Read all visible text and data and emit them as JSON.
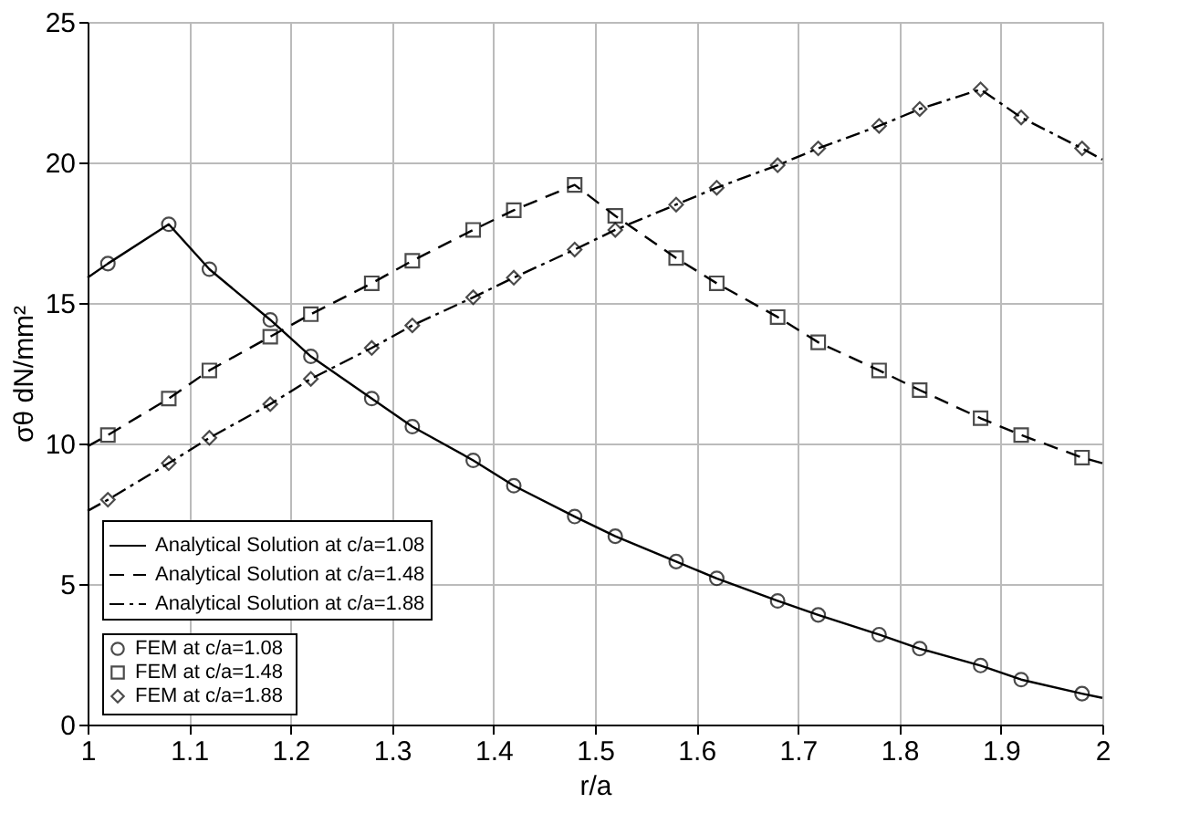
{
  "chart_data": {
    "type": "line",
    "xlabel": "r/a",
    "ylabel": "σθ dN/mm²",
    "xlim": [
      1,
      2
    ],
    "ylim": [
      0,
      25
    ],
    "xticks": [
      1,
      1.1,
      1.2,
      1.3,
      1.4,
      1.5,
      1.6,
      1.7,
      1.8,
      1.9,
      2
    ],
    "yticks": [
      0,
      5,
      10,
      15,
      20,
      25
    ],
    "grid": true,
    "legend": "bottom left",
    "series": [
      {
        "name": "Analytical Solution at c/a=1.08",
        "type": "line",
        "color": "#000000",
        "line_style": "solid",
        "marker": "none",
        "x": [
          1.0,
          1.02,
          1.08,
          1.12,
          1.18,
          1.22,
          1.28,
          1.32,
          1.38,
          1.42,
          1.48,
          1.52,
          1.58,
          1.62,
          1.68,
          1.72,
          1.78,
          1.82,
          1.88,
          1.92,
          1.98,
          2.0
        ],
        "values": [
          15.9,
          16.4,
          17.8,
          16.2,
          14.4,
          13.1,
          11.6,
          10.6,
          9.4,
          8.5,
          7.4,
          6.7,
          5.8,
          5.2,
          4.4,
          3.9,
          3.2,
          2.7,
          2.1,
          1.6,
          1.1,
          0.95
        ]
      },
      {
        "name": "Analytical Solution at c/a=1.48",
        "type": "line",
        "color": "#000000",
        "line_style": "dashed",
        "marker": "none",
        "x": [
          1.0,
          1.02,
          1.08,
          1.12,
          1.18,
          1.22,
          1.28,
          1.32,
          1.38,
          1.42,
          1.48,
          1.52,
          1.58,
          1.62,
          1.68,
          1.72,
          1.78,
          1.82,
          1.88,
          1.92,
          1.98,
          2.0
        ],
        "values": [
          9.9,
          10.3,
          11.6,
          12.6,
          13.8,
          14.6,
          15.7,
          16.5,
          17.6,
          18.3,
          19.2,
          18.1,
          16.6,
          15.7,
          14.5,
          13.6,
          12.6,
          11.9,
          10.9,
          10.3,
          9.5,
          9.3
        ]
      },
      {
        "name": "Analytical Solution at c/a=1.88",
        "type": "line",
        "color": "#000000",
        "line_style": "dotted",
        "marker": "none",
        "x": [
          1.0,
          1.02,
          1.08,
          1.12,
          1.18,
          1.22,
          1.28,
          1.32,
          1.38,
          1.42,
          1.48,
          1.52,
          1.58,
          1.62,
          1.68,
          1.72,
          1.78,
          1.82,
          1.88,
          1.92,
          1.98,
          2.0
        ],
        "values": [
          7.6,
          8.0,
          9.3,
          10.2,
          11.4,
          12.3,
          13.4,
          14.2,
          15.2,
          15.9,
          16.9,
          17.6,
          18.5,
          19.1,
          19.9,
          20.5,
          21.3,
          21.9,
          22.6,
          21.6,
          20.5,
          20.1
        ]
      },
      {
        "name": "FEM  at c/a=1.08",
        "type": "scatter",
        "color": "#000000",
        "marker": "circle",
        "x": [
          1.02,
          1.08,
          1.12,
          1.18,
          1.22,
          1.28,
          1.32,
          1.38,
          1.42,
          1.48,
          1.52,
          1.58,
          1.62,
          1.68,
          1.72,
          1.78,
          1.82,
          1.88,
          1.92,
          1.98
        ],
        "values": [
          16.4,
          17.8,
          16.2,
          14.4,
          13.1,
          11.6,
          10.6,
          9.4,
          8.5,
          7.4,
          6.7,
          5.8,
          5.2,
          4.4,
          3.9,
          3.2,
          2.7,
          2.1,
          1.6,
          1.1
        ]
      },
      {
        "name": "FEM  at c/a=1.48",
        "type": "scatter",
        "color": "#000000",
        "marker": "square",
        "x": [
          1.02,
          1.08,
          1.12,
          1.18,
          1.22,
          1.28,
          1.32,
          1.38,
          1.42,
          1.48,
          1.52,
          1.58,
          1.62,
          1.68,
          1.72,
          1.78,
          1.82,
          1.88,
          1.92,
          1.98
        ],
        "values": [
          10.3,
          11.6,
          12.6,
          13.8,
          14.6,
          15.7,
          16.5,
          17.6,
          18.3,
          19.2,
          18.1,
          16.6,
          15.7,
          14.5,
          13.6,
          12.6,
          11.9,
          10.9,
          10.3,
          9.5
        ]
      },
      {
        "name": "FEM  at c/a=1.88",
        "type": "scatter",
        "color": "#000000",
        "marker": "diamond",
        "x": [
          1.02,
          1.08,
          1.12,
          1.18,
          1.22,
          1.28,
          1.32,
          1.38,
          1.42,
          1.48,
          1.52,
          1.58,
          1.62,
          1.68,
          1.72,
          1.78,
          1.82,
          1.88,
          1.92,
          1.98
        ],
        "values": [
          8.0,
          9.3,
          10.2,
          11.4,
          12.3,
          13.4,
          14.2,
          15.2,
          15.9,
          16.9,
          17.6,
          18.5,
          19.1,
          19.9,
          20.5,
          21.3,
          21.9,
          22.6,
          21.6,
          20.5
        ]
      }
    ]
  }
}
